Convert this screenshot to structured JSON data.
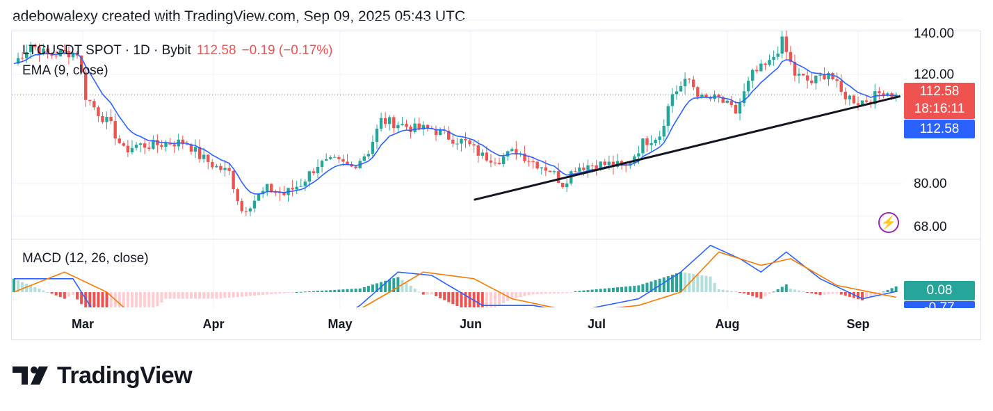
{
  "header": {
    "text": "adebowalexy created with TradingView.com, Sep 09, 2025 05:43 UTC"
  },
  "legend": {
    "symbol": "LTCUSDT SPOT · 1D · Bybit",
    "price": "112.58",
    "change": "−0.19 (−0.17%)",
    "ema": "EMA (9, close)",
    "macd": "MACD (12, 26, close)"
  },
  "price_axis": {
    "ticks": [
      "140.00",
      "120.00",
      "80.00",
      "68.00"
    ]
  },
  "tags": {
    "price": "112.58",
    "countdown": "18:16:11",
    "ema": "112.58",
    "macd": "0.08",
    "signal": "-0.77"
  },
  "months": [
    "Mar",
    "Apr",
    "May",
    "Jun",
    "Jul",
    "Aug",
    "Sep"
  ],
  "brand": {
    "name": "TradingView"
  },
  "colors": {
    "up": "#26a69a",
    "down": "#ef5350",
    "ema": "#2962ff",
    "signal": "#f57c00",
    "trendline": "#131722",
    "lightning": "#9c27b0"
  },
  "chart_data": {
    "type": "candlestick",
    "symbol": "LTCUSDT",
    "timeframe": "1D",
    "exchange": "Bybit",
    "last_price": 112.58,
    "change": -0.19,
    "change_pct": -0.17,
    "price_range": [
      62,
      140
    ],
    "price_ticks": [
      140,
      120,
      80,
      68
    ],
    "closes_approx": [
      {
        "date": "2025-02-12",
        "close": 124
      },
      {
        "date": "2025-02-16",
        "close": 131
      },
      {
        "date": "2025-02-20",
        "close": 127
      },
      {
        "date": "2025-02-24",
        "close": 128
      },
      {
        "date": "2025-02-27",
        "close": 128
      },
      {
        "date": "2025-03-01",
        "close": 112
      },
      {
        "date": "2025-03-04",
        "close": 106
      },
      {
        "date": "2025-03-07",
        "close": 101
      },
      {
        "date": "2025-03-10",
        "close": 92
      },
      {
        "date": "2025-03-13",
        "close": 94
      },
      {
        "date": "2025-03-17",
        "close": 94
      },
      {
        "date": "2025-03-21",
        "close": 95
      },
      {
        "date": "2025-03-25",
        "close": 95
      },
      {
        "date": "2025-03-28",
        "close": 90
      },
      {
        "date": "2025-04-01",
        "close": 86
      },
      {
        "date": "2025-04-04",
        "close": 84
      },
      {
        "date": "2025-04-07",
        "close": 70
      },
      {
        "date": "2025-04-10",
        "close": 74
      },
      {
        "date": "2025-04-13",
        "close": 78
      },
      {
        "date": "2025-04-17",
        "close": 76
      },
      {
        "date": "2025-04-21",
        "close": 80
      },
      {
        "date": "2025-04-25",
        "close": 87
      },
      {
        "date": "2025-04-29",
        "close": 88
      },
      {
        "date": "2025-05-03",
        "close": 86
      },
      {
        "date": "2025-05-07",
        "close": 92
      },
      {
        "date": "2025-05-10",
        "close": 103
      },
      {
        "date": "2025-05-14",
        "close": 102
      },
      {
        "date": "2025-05-18",
        "close": 100
      },
      {
        "date": "2025-05-22",
        "close": 100
      },
      {
        "date": "2025-05-26",
        "close": 97
      },
      {
        "date": "2025-05-30",
        "close": 95
      },
      {
        "date": "2025-06-03",
        "close": 90
      },
      {
        "date": "2025-06-07",
        "close": 89
      },
      {
        "date": "2025-06-11",
        "close": 92
      },
      {
        "date": "2025-06-15",
        "close": 88
      },
      {
        "date": "2025-06-19",
        "close": 85
      },
      {
        "date": "2025-06-22",
        "close": 80
      },
      {
        "date": "2025-06-25",
        "close": 86
      },
      {
        "date": "2025-06-29",
        "close": 87
      },
      {
        "date": "2025-07-03",
        "close": 87
      },
      {
        "date": "2025-07-07",
        "close": 86
      },
      {
        "date": "2025-07-11",
        "close": 95
      },
      {
        "date": "2025-07-15",
        "close": 98
      },
      {
        "date": "2025-07-18",
        "close": 113
      },
      {
        "date": "2025-07-22",
        "close": 118
      },
      {
        "date": "2025-07-25",
        "close": 111
      },
      {
        "date": "2025-07-29",
        "close": 111
      },
      {
        "date": "2025-08-02",
        "close": 106
      },
      {
        "date": "2025-08-06",
        "close": 120
      },
      {
        "date": "2025-08-10",
        "close": 124
      },
      {
        "date": "2025-08-13",
        "close": 132
      },
      {
        "date": "2025-08-16",
        "close": 120
      },
      {
        "date": "2025-08-20",
        "close": 117
      },
      {
        "date": "2025-08-24",
        "close": 121
      },
      {
        "date": "2025-08-27",
        "close": 113
      },
      {
        "date": "2025-08-31",
        "close": 110
      },
      {
        "date": "2025-09-03",
        "close": 111
      },
      {
        "date": "2025-09-06",
        "close": 114
      },
      {
        "date": "2025-09-09",
        "close": 112.58
      }
    ],
    "ema_period": 9,
    "trendline": {
      "from": {
        "date": "2025-06-01",
        "price": 74
      },
      "to": {
        "date": "2025-09-10",
        "price": 112
      }
    },
    "macd": {
      "params": [
        12,
        26
      ],
      "macd_last": 0.08,
      "signal_last": -0.77,
      "macd_approx": [
        {
          "date": "2025-02-12",
          "value": 2
        },
        {
          "date": "2025-02-26",
          "value": 2
        },
        {
          "date": "2025-03-06",
          "value": -6
        },
        {
          "date": "2025-03-15",
          "value": -9
        },
        {
          "date": "2025-04-01",
          "value": -9
        },
        {
          "date": "2025-04-20",
          "value": -8
        },
        {
          "date": "2025-05-05",
          "value": -2
        },
        {
          "date": "2025-05-14",
          "value": 3
        },
        {
          "date": "2025-05-22",
          "value": 2.5
        },
        {
          "date": "2025-06-03",
          "value": -2
        },
        {
          "date": "2025-06-15",
          "value": -2
        },
        {
          "date": "2025-06-24",
          "value": -3
        },
        {
          "date": "2025-07-10",
          "value": -1
        },
        {
          "date": "2025-07-20",
          "value": 3
        },
        {
          "date": "2025-07-27",
          "value": 7
        },
        {
          "date": "2025-08-03",
          "value": 5
        },
        {
          "date": "2025-08-08",
          "value": 3
        },
        {
          "date": "2025-08-14",
          "value": 6
        },
        {
          "date": "2025-08-22",
          "value": 2
        },
        {
          "date": "2025-09-01",
          "value": -1
        },
        {
          "date": "2025-09-09",
          "value": 0.08
        }
      ],
      "signal_approx": [
        {
          "date": "2025-02-12",
          "value": 0
        },
        {
          "date": "2025-02-24",
          "value": 3
        },
        {
          "date": "2025-03-06",
          "value": 0
        },
        {
          "date": "2025-03-20",
          "value": -8
        },
        {
          "date": "2025-04-20",
          "value": -8
        },
        {
          "date": "2025-05-01",
          "value": -4
        },
        {
          "date": "2025-05-12",
          "value": 0
        },
        {
          "date": "2025-05-20",
          "value": 3
        },
        {
          "date": "2025-06-01",
          "value": 2
        },
        {
          "date": "2025-06-10",
          "value": -1
        },
        {
          "date": "2025-06-25",
          "value": -3
        },
        {
          "date": "2025-07-10",
          "value": -2
        },
        {
          "date": "2025-07-20",
          "value": 0
        },
        {
          "date": "2025-07-29",
          "value": 6
        },
        {
          "date": "2025-08-08",
          "value": 4
        },
        {
          "date": "2025-08-15",
          "value": 5
        },
        {
          "date": "2025-08-26",
          "value": 1
        },
        {
          "date": "2025-09-09",
          "value": -0.77
        }
      ]
    },
    "x_labels": [
      "Mar",
      "Apr",
      "May",
      "Jun",
      "Jul",
      "Aug",
      "Sep"
    ]
  }
}
